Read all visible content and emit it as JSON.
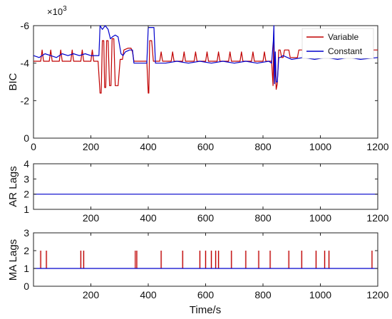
{
  "chart_data": [
    {
      "type": "line",
      "ylabel": "BIC",
      "y_multiplier": "×10",
      "y_multiplier_exp": "3",
      "xlim": [
        0,
        1200
      ],
      "ylim": [
        0,
        -6000
      ],
      "y_reversed": true,
      "yticks": [
        -6000,
        -4000,
        -2000,
        0
      ],
      "ytick_labels": [
        "-6",
        "-4",
        "-2",
        "0"
      ],
      "xticks": [
        0,
        200,
        400,
        600,
        800,
        1000,
        1200
      ],
      "xtick_labels": [
        "0",
        "200",
        "400",
        "600",
        "800",
        "1000",
        "1200"
      ],
      "legend_position": "top-right",
      "series": [
        {
          "name": "Variable",
          "color": "#c00000",
          "points": [
            [
              0,
              -4100
            ],
            [
              25,
              -4100
            ],
            [
              30,
              -4700
            ],
            [
              35,
              -4100
            ],
            [
              55,
              -4100
            ],
            [
              60,
              -4700
            ],
            [
              65,
              -4100
            ],
            [
              90,
              -4100
            ],
            [
              95,
              -4700
            ],
            [
              100,
              -4100
            ],
            [
              130,
              -4100
            ],
            [
              135,
              -4700
            ],
            [
              140,
              -4100
            ],
            [
              165,
              -4100
            ],
            [
              170,
              -4700
            ],
            [
              175,
              -4100
            ],
            [
              200,
              -4100
            ],
            [
              205,
              -4700
            ],
            [
              210,
              -4100
            ],
            [
              225,
              -4100
            ],
            [
              232,
              -2400
            ],
            [
              236,
              -2400
            ],
            [
              240,
              -5200
            ],
            [
              245,
              -5200
            ],
            [
              248,
              -2700
            ],
            [
              252,
              -2700
            ],
            [
              255,
              -5200
            ],
            [
              260,
              -5200
            ],
            [
              265,
              -2800
            ],
            [
              270,
              -2800
            ],
            [
              274,
              -5300
            ],
            [
              280,
              -5300
            ],
            [
              285,
              -2800
            ],
            [
              290,
              -2800
            ],
            [
              295,
              -2800
            ],
            [
              302,
              -4200
            ],
            [
              310,
              -4200
            ],
            [
              315,
              -4700
            ],
            [
              330,
              -4800
            ],
            [
              340,
              -4800
            ],
            [
              345,
              -4600
            ],
            [
              350,
              -4100
            ],
            [
              385,
              -4100
            ],
            [
              395,
              -4100
            ],
            [
              400,
              -2400
            ],
            [
              402,
              -2400
            ],
            [
              405,
              -5200
            ],
            [
              408,
              -5200
            ],
            [
              412,
              -5200
            ],
            [
              418,
              -4100
            ],
            [
              440,
              -4100
            ],
            [
              445,
              -4600
            ],
            [
              450,
              -4100
            ],
            [
              480,
              -4100
            ],
            [
              485,
              -4600
            ],
            [
              490,
              -4100
            ],
            [
              520,
              -4100
            ],
            [
              525,
              -4600
            ],
            [
              530,
              -4100
            ],
            [
              560,
              -4100
            ],
            [
              565,
              -4600
            ],
            [
              570,
              -4100
            ],
            [
              600,
              -4100
            ],
            [
              605,
              -4600
            ],
            [
              610,
              -4100
            ],
            [
              640,
              -4100
            ],
            [
              645,
              -4600
            ],
            [
              650,
              -4100
            ],
            [
              680,
              -4100
            ],
            [
              685,
              -4600
            ],
            [
              690,
              -4100
            ],
            [
              720,
              -4100
            ],
            [
              725,
              -4600
            ],
            [
              730,
              -4100
            ],
            [
              760,
              -4100
            ],
            [
              765,
              -4600
            ],
            [
              770,
              -4100
            ],
            [
              800,
              -4100
            ],
            [
              805,
              -4600
            ],
            [
              810,
              -4100
            ],
            [
              830,
              -4100
            ],
            [
              835,
              -2800
            ],
            [
              838,
              -5700
            ],
            [
              840,
              -2900
            ],
            [
              843,
              -3900
            ],
            [
              846,
              -2600
            ],
            [
              850,
              -2900
            ],
            [
              855,
              -4700
            ],
            [
              860,
              -4700
            ],
            [
              865,
              -4300
            ],
            [
              870,
              -4300
            ],
            [
              875,
              -4700
            ],
            [
              890,
              -4700
            ],
            [
              895,
              -4300
            ],
            [
              920,
              -4300
            ],
            [
              925,
              -4700
            ],
            [
              950,
              -4700
            ],
            [
              955,
              -4300
            ],
            [
              980,
              -4300
            ],
            [
              985,
              -4700
            ],
            [
              1010,
              -4700
            ],
            [
              1015,
              -4300
            ],
            [
              1040,
              -4300
            ],
            [
              1045,
              -4700
            ],
            [
              1070,
              -4700
            ],
            [
              1075,
              -4300
            ],
            [
              1100,
              -4300
            ],
            [
              1105,
              -4700
            ],
            [
              1130,
              -4700
            ],
            [
              1135,
              -4300
            ],
            [
              1160,
              -4300
            ],
            [
              1165,
              -4700
            ],
            [
              1200,
              -4700
            ]
          ]
        },
        {
          "name": "Constant",
          "color": "#0000cc",
          "points": [
            [
              0,
              -4400
            ],
            [
              20,
              -4300
            ],
            [
              40,
              -4500
            ],
            [
              60,
              -4400
            ],
            [
              80,
              -4300
            ],
            [
              100,
              -4500
            ],
            [
              120,
              -4400
            ],
            [
              140,
              -4500
            ],
            [
              160,
              -4400
            ],
            [
              180,
              -4500
            ],
            [
              200,
              -4400
            ],
            [
              220,
              -4400
            ],
            [
              228,
              -4400
            ],
            [
              232,
              -6000
            ],
            [
              240,
              -5800
            ],
            [
              250,
              -6000
            ],
            [
              260,
              -5800
            ],
            [
              268,
              -5300
            ],
            [
              275,
              -5400
            ],
            [
              285,
              -5500
            ],
            [
              295,
              -5400
            ],
            [
              305,
              -4500
            ],
            [
              312,
              -4400
            ],
            [
              320,
              -4600
            ],
            [
              335,
              -4700
            ],
            [
              345,
              -4700
            ],
            [
              350,
              -4000
            ],
            [
              385,
              -4000
            ],
            [
              395,
              -4000
            ],
            [
              400,
              -5900
            ],
            [
              420,
              -5900
            ],
            [
              425,
              -4000
            ],
            [
              460,
              -4000
            ],
            [
              500,
              -4100
            ],
            [
              540,
              -4000
            ],
            [
              580,
              -4100
            ],
            [
              620,
              -4000
            ],
            [
              660,
              -4100
            ],
            [
              700,
              -4000
            ],
            [
              740,
              -4100
            ],
            [
              780,
              -4000
            ],
            [
              820,
              -4100
            ],
            [
              830,
              -4000
            ],
            [
              836,
              -5200
            ],
            [
              838,
              -6000
            ],
            [
              840,
              -2900
            ],
            [
              843,
              -4600
            ],
            [
              846,
              -3000
            ],
            [
              850,
              -3000
            ],
            [
              855,
              -4300
            ],
            [
              860,
              -4300
            ],
            [
              870,
              -4400
            ],
            [
              900,
              -4200
            ],
            [
              940,
              -4300
            ],
            [
              980,
              -4200
            ],
            [
              1020,
              -4300
            ],
            [
              1060,
              -4200
            ],
            [
              1100,
              -4300
            ],
            [
              1140,
              -4200
            ],
            [
              1200,
              -4300
            ]
          ]
        }
      ]
    },
    {
      "type": "line",
      "ylabel": "AR Lags",
      "xlim": [
        0,
        1200
      ],
      "ylim": [
        1,
        4
      ],
      "yticks": [
        1,
        2,
        3,
        4
      ],
      "ytick_labels": [
        "1",
        "2",
        "3",
        "4"
      ],
      "xticks": [
        200,
        400,
        600,
        800,
        1000,
        1200
      ],
      "xtick_labels": [
        "200",
        "400",
        "600",
        "800",
        "1000",
        "1200"
      ],
      "series": [
        {
          "name": "Constant",
          "color": "#0000cc",
          "points": [
            [
              0,
              2
            ],
            [
              1200,
              2
            ]
          ]
        }
      ]
    },
    {
      "type": "line",
      "ylabel": "MA Lags",
      "xlabel": "Time/s",
      "xlim": [
        0,
        1200
      ],
      "ylim": [
        0,
        3
      ],
      "yticks": [
        0,
        1,
        2,
        3
      ],
      "ytick_labels": [
        "0",
        "1",
        "2",
        "3"
      ],
      "xticks": [
        200,
        400,
        600,
        800,
        1000,
        1200
      ],
      "xtick_labels": [
        "200",
        "400",
        "600",
        "800",
        "1000",
        "1200"
      ],
      "spike_value": 2,
      "baseline_value": 1,
      "spikes_x": [
        25,
        45,
        165,
        175,
        355,
        360,
        445,
        520,
        580,
        600,
        620,
        635,
        645,
        690,
        740,
        785,
        825,
        890,
        935,
        985,
        1015,
        1030,
        1180
      ],
      "series": [
        {
          "name": "Variable",
          "color": "#c00000",
          "points": []
        },
        {
          "name": "Constant",
          "color": "#0000cc",
          "points": [
            [
              0,
              1
            ],
            [
              1200,
              1
            ]
          ]
        }
      ]
    }
  ]
}
